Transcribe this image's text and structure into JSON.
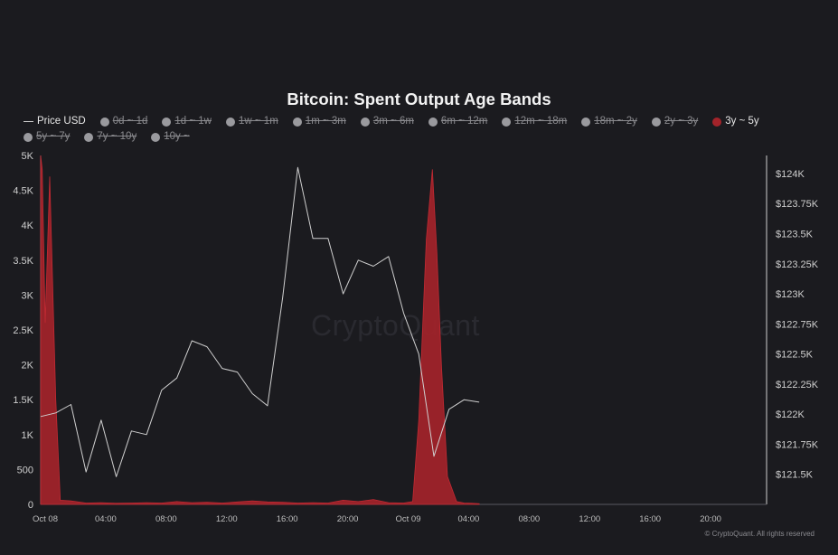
{
  "chart_data": {
    "type": "area",
    "title": "Bitcoin: Spent Output Age Bands",
    "legend_position": "top-left",
    "grid": false,
    "legend": [
      {
        "name": "Price USD",
        "marker": "line",
        "active": true
      },
      {
        "name": "0d ~ 1d",
        "marker": "dot",
        "active": false
      },
      {
        "name": "1d ~ 1w",
        "marker": "dot",
        "active": false
      },
      {
        "name": "1w ~ 1m",
        "marker": "dot",
        "active": false
      },
      {
        "name": "1m ~ 3m",
        "marker": "dot",
        "active": false
      },
      {
        "name": "3m ~ 6m",
        "marker": "dot",
        "active": false
      },
      {
        "name": "6m ~ 12m",
        "marker": "dot",
        "active": false
      },
      {
        "name": "12m ~ 18m",
        "marker": "dot",
        "active": false
      },
      {
        "name": "18m ~ 2y",
        "marker": "dot",
        "active": false
      },
      {
        "name": "2y ~ 3y",
        "marker": "dot",
        "active": false
      },
      {
        "name": "3y ~ 5y",
        "marker": "dot",
        "active": true,
        "color": "#a3232a"
      },
      {
        "name": "5y ~ 7y",
        "marker": "dot",
        "active": false
      },
      {
        "name": "7y ~ 10y",
        "marker": "dot",
        "active": false
      },
      {
        "name": "10y ~",
        "marker": "dot",
        "active": false
      }
    ],
    "x_axis": {
      "unit": "hours since Oct 08 00:00",
      "range": [
        0,
        48
      ],
      "tick_values": [
        0,
        4,
        8,
        12,
        16,
        20,
        24,
        28,
        32,
        36,
        40,
        44
      ],
      "tick_labels": [
        "Oct 08",
        "04:00",
        "08:00",
        "12:00",
        "16:00",
        "20:00",
        "Oct 09",
        "04:00",
        "08:00",
        "12:00",
        "16:00",
        "20:00"
      ]
    },
    "y_left": {
      "range": [
        0,
        5000
      ],
      "tick_values": [
        0,
        500,
        1000,
        1500,
        2000,
        2500,
        3000,
        3500,
        4000,
        4500,
        5000
      ],
      "tick_labels": [
        "0",
        "500",
        "1K",
        "1.5K",
        "2K",
        "2.5K",
        "3K",
        "3.5K",
        "4K",
        "4.5K",
        "5K"
      ]
    },
    "y_right": {
      "range": [
        121250,
        124150
      ],
      "tick_values": [
        121500,
        121750,
        122000,
        122250,
        122500,
        122750,
        123000,
        123250,
        123500,
        123750,
        124000
      ],
      "tick_labels": [
        "$121.5K",
        "$121.75K",
        "$122K",
        "$122.25K",
        "$122.5K",
        "$122.75K",
        "$123K",
        "$123.25K",
        "$123.5K",
        "$123.75K",
        "$124K"
      ]
    },
    "series": [
      {
        "name": "3y ~ 5y",
        "axis": "left",
        "color": "#a3232a",
        "x": [
          0,
          0.1,
          0.3,
          0.6,
          1,
          1.3,
          2,
          3,
          4,
          5,
          6,
          7,
          8,
          9,
          10,
          11,
          12,
          13,
          14,
          15,
          16,
          17,
          18,
          19,
          20,
          21,
          22,
          23,
          24,
          24.6,
          25,
          25.5,
          25.9,
          26.2,
          26.5,
          26.9,
          27.5,
          28,
          28.5,
          29
        ],
        "values": [
          5000,
          4800,
          2600,
          4700,
          1500,
          60,
          50,
          20,
          25,
          15,
          20,
          25,
          20,
          40,
          25,
          30,
          20,
          35,
          50,
          35,
          30,
          20,
          25,
          20,
          60,
          40,
          70,
          25,
          20,
          40,
          1200,
          3800,
          4800,
          3600,
          2000,
          400,
          40,
          20,
          15,
          10
        ]
      },
      {
        "name": "Price USD",
        "axis": "right",
        "color": "#d0d0d0",
        "x": [
          0,
          1,
          2,
          3,
          4,
          5,
          6,
          7,
          8,
          9,
          10,
          11,
          12,
          13,
          14,
          15,
          16,
          17,
          18,
          19,
          20,
          21,
          22,
          23,
          24,
          25,
          26,
          27,
          28,
          29
        ],
        "values": [
          121980,
          122010,
          122080,
          121520,
          121950,
          121480,
          121860,
          121830,
          122200,
          122300,
          122610,
          122560,
          122380,
          122350,
          122170,
          122070,
          122970,
          124050,
          123460,
          123460,
          123000,
          123280,
          123230,
          123310,
          122840,
          122500,
          121650,
          122040,
          122120,
          122100
        ]
      }
    ]
  },
  "watermark": "CryptoQuant",
  "copyright": "© CryptoQuant. All rights reserved"
}
